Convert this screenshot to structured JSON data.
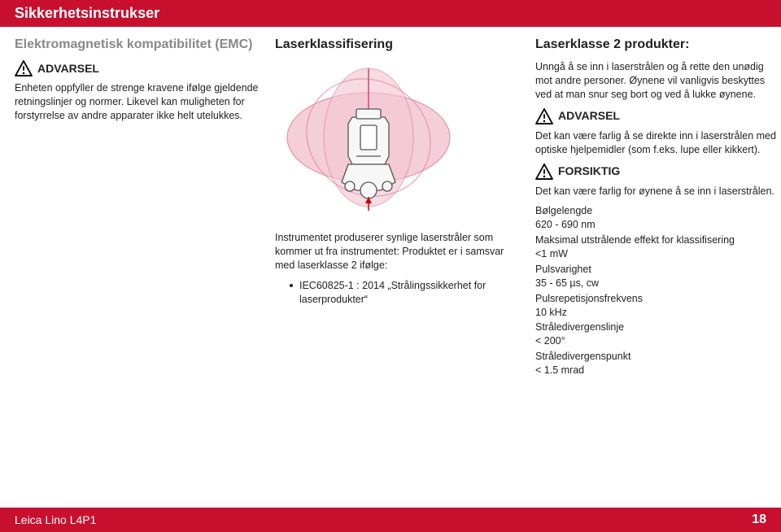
{
  "header": {
    "title": "Sikkerhetsinstrukser"
  },
  "col1": {
    "heading": "Elektromagnetisk kompatibilitet (EMC)",
    "warn_label": "ADVARSEL",
    "body": "Enheten oppfyller de strenge kravene ifølge gjeldende retningslinjer og normer. Likevel kan muligheten for forstyrrelse av andre apparater ikke helt utelukkes."
  },
  "col2": {
    "heading": "Laserklassifisering",
    "body": "Instrumentet produserer synlige laserstråler som kommer ut fra instrumentet: Produktet er i samsvar med laserklasse 2 ifølge:",
    "bullet": "IEC60825-1 : 2014 „Strålingssikkerhet for laserprodukter“",
    "diagram": {
      "beam_color": "#e58aa0",
      "beam_fill": "#f3c9d4",
      "device_stroke": "#555555",
      "device_fill": "#f7f7f7"
    }
  },
  "col3": {
    "heading": "Laserklasse 2 produkter:",
    "body1": "Unngå å se inn i laserstrålen og å rette den unødig mot andre personer. Øynene vil vanligvis beskyttes ved at man snur seg bort og ved å lukke øynene.",
    "warn1_label": "ADVARSEL",
    "body2": "Det kan være farlig å se direkte inn i laserstrålen med optiske hjelpemidler (som f.eks. lupe eller kikkert).",
    "warn2_label": "FORSIKTIG",
    "body3": "Det kan være farlig for øynene å se inn i laserstrålen.",
    "specs": [
      {
        "k": "Bølgelengde",
        "v": "620 - 690 nm"
      },
      {
        "k": "Maksimal utstrålende effekt for klassifisering",
        "v": "<1 mW"
      },
      {
        "k": "Pulsvarighet",
        "v": "35 - 65 µs, cw"
      },
      {
        "k": "Pulsrepetisjonsfrekvens",
        "v": "10 kHz"
      },
      {
        "k": "Stråledivergenslinje",
        "v": "< 200°"
      },
      {
        "k": "Stråledivergenspunkt",
        "v": "< 1.5 mrad"
      }
    ]
  },
  "footer": {
    "product": "Leica Lino L4P1",
    "page": "18"
  },
  "icons": {
    "warn_stroke": "#000000",
    "warn_fill": "none"
  }
}
